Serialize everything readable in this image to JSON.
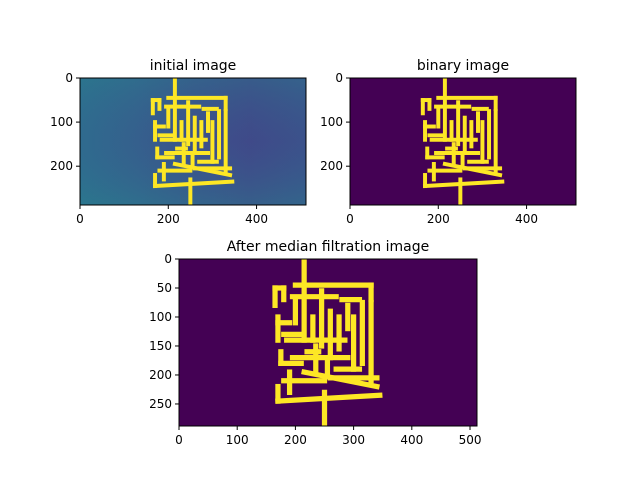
{
  "colors": {
    "background_dark": "#440154",
    "maze_yellow": "#fde725",
    "noise_low": "#3b528b",
    "noise_mid": "#31688e",
    "noise_high": "#21918c",
    "axis": "#000000"
  },
  "chart_data": [
    {
      "type": "heatmap",
      "title": "initial image",
      "xlim": [
        0,
        512
      ],
      "ylim": [
        288,
        0
      ],
      "xticks": [
        0,
        200,
        400
      ],
      "yticks": [
        0,
        100,
        200
      ],
      "colormap": "viridis",
      "note_rendering": "noisy"
    },
    {
      "type": "heatmap",
      "title": "binary image",
      "xlim": [
        0,
        512
      ],
      "ylim": [
        288,
        0
      ],
      "xticks": [
        0,
        200,
        400
      ],
      "yticks": [
        0,
        100,
        200
      ],
      "colormap": "viridis",
      "note_rendering": "binary"
    },
    {
      "type": "heatmap",
      "title": "After median filtration image",
      "xlim": [
        0,
        512
      ],
      "ylim": [
        288,
        0
      ],
      "xticks": [
        0,
        100,
        200,
        300,
        400,
        500
      ],
      "yticks": [
        0,
        50,
        100,
        150,
        200,
        250
      ],
      "colormap": "viridis",
      "note_rendering": "binary"
    }
  ],
  "maze_segments": [
    [
      [
        215,
        0
      ],
      [
        215,
        140
      ]
    ],
    [
      [
        250,
        230
      ],
      [
        250,
        288
      ]
    ],
    [
      [
        165,
        50
      ],
      [
        180,
        50
      ]
    ],
    [
      [
        165,
        50
      ],
      [
        165,
        80
      ]
    ],
    [
      [
        180,
        50
      ],
      [
        180,
        70
      ]
    ],
    [
      [
        200,
        45
      ],
      [
        330,
        45
      ]
    ],
    [
      [
        330,
        45
      ],
      [
        330,
        70
      ]
    ],
    [
      [
        195,
        65
      ],
      [
        270,
        65
      ]
    ],
    [
      [
        280,
        70
      ],
      [
        310,
        70
      ]
    ],
    [
      [
        245,
        55
      ],
      [
        245,
        150
      ]
    ],
    [
      [
        290,
        80
      ],
      [
        290,
        120
      ]
    ],
    [
      [
        315,
        75
      ],
      [
        315,
        180
      ]
    ],
    [
      [
        170,
        100
      ],
      [
        170,
        140
      ]
    ],
    [
      [
        170,
        110
      ],
      [
        190,
        110
      ]
    ],
    [
      [
        200,
        70
      ],
      [
        200,
        110
      ]
    ],
    [
      [
        180,
        130
      ],
      [
        210,
        130
      ]
    ],
    [
      [
        260,
        90
      ],
      [
        260,
        170
      ]
    ],
    [
      [
        275,
        100
      ],
      [
        275,
        155
      ]
    ],
    [
      [
        230,
        100
      ],
      [
        230,
        140
      ]
    ],
    [
      [
        185,
        140
      ],
      [
        285,
        140
      ]
    ],
    [
      [
        300,
        100
      ],
      [
        300,
        190
      ]
    ],
    [
      [
        235,
        150
      ],
      [
        235,
        195
      ]
    ],
    [
      [
        220,
        160
      ],
      [
        240,
        160
      ]
    ],
    [
      [
        175,
        160
      ],
      [
        175,
        180
      ]
    ],
    [
      [
        175,
        180
      ],
      [
        210,
        180
      ]
    ],
    [
      [
        195,
        170
      ],
      [
        290,
        170
      ]
    ],
    [
      [
        255,
        175
      ],
      [
        255,
        195
      ]
    ],
    [
      [
        270,
        190
      ],
      [
        310,
        190
      ]
    ],
    [
      [
        330,
        75
      ],
      [
        330,
        210
      ]
    ],
    [
      [
        180,
        210
      ],
      [
        250,
        210
      ]
    ],
    [
      [
        190,
        195
      ],
      [
        190,
        230
      ]
    ],
    [
      [
        215,
        195
      ],
      [
        340,
        220
      ]
    ],
    [
      [
        260,
        205
      ],
      [
        340,
        205
      ]
    ],
    [
      [
        170,
        220
      ],
      [
        170,
        245
      ]
    ],
    [
      [
        170,
        245
      ],
      [
        345,
        235
      ]
    ]
  ]
}
